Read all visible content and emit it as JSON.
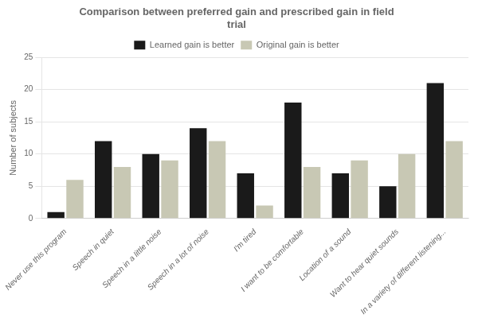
{
  "chart_data": {
    "type": "bar",
    "title": "Comparison between preferred gain and prescribed gain in field\ntrial",
    "ylabel": "Number of subjects",
    "categories": [
      "Never use this program",
      "Speech in quiet",
      "Speech in a little noise",
      "Speech in a lot of noise",
      "I'm tired",
      "I want to be comfortable",
      "Location of a sound",
      "Want to hear quiet sounds",
      "In a variety of different listening..."
    ],
    "series": [
      {
        "name": "Learned gain is better",
        "color": "#1a1a1a",
        "values": [
          1,
          12,
          10,
          14,
          7,
          18,
          7,
          5,
          21
        ]
      },
      {
        "name": "Original gain is better",
        "color": "#c8c8b4",
        "values": [
          6,
          8,
          9,
          12,
          2,
          8,
          9,
          10,
          12
        ]
      }
    ],
    "ylim": [
      0,
      25
    ],
    "yticks": [
      0,
      5,
      10,
      15,
      20,
      25
    ],
    "grid": true,
    "legend": "top"
  }
}
